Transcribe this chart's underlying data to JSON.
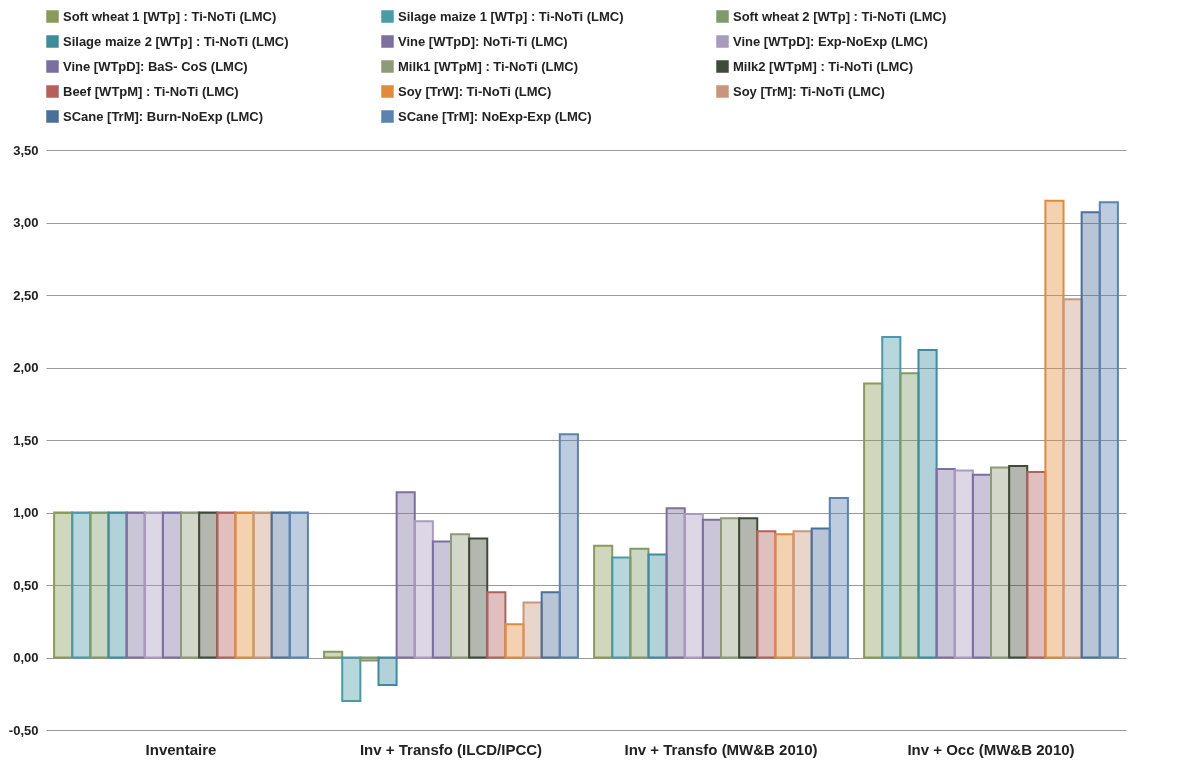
{
  "chart_data": {
    "type": "bar",
    "categories": [
      "Inventaire",
      "Inv + Transfo (ILCD/IPCC)",
      "Inv + Transfo (MW&B 2010)",
      "Inv + Occ (MW&B 2010)"
    ],
    "series": [
      {
        "name": "Soft wheat 1 [WTp] : Ti-NoTi (LMC)",
        "color": "#8a9a5b",
        "values": [
          1.0,
          0.04,
          0.77,
          1.89
        ]
      },
      {
        "name": "Silage maize 1 [WTp] : Ti-NoTi (LMC)",
        "color": "#4a9aa8",
        "values": [
          1.0,
          -0.3,
          0.69,
          2.21
        ]
      },
      {
        "name": "Soft wheat 2 [WTp] : Ti-NoTi (LMC)",
        "color": "#7f9a6a",
        "values": [
          1.0,
          -0.02,
          0.75,
          1.96
        ]
      },
      {
        "name": "Silage maize 2 [WTp] : Ti-NoTi (LMC)",
        "color": "#3f8c9e",
        "values": [
          1.0,
          -0.19,
          0.71,
          2.12
        ]
      },
      {
        "name": "Vine [WTpD]: NoTi-Ti (LMC)",
        "color": "#7d6f9e",
        "values": [
          1.0,
          1.14,
          1.03,
          1.3
        ]
      },
      {
        "name": "Vine [WTpD]: Exp-NoExp (LMC)",
        "color": "#a99bbd",
        "values": [
          1.0,
          0.94,
          0.99,
          1.29
        ]
      },
      {
        "name": "Vine [WTpD]: BaS- CoS (LMC)",
        "color": "#7a6fa0",
        "values": [
          1.0,
          0.8,
          0.95,
          1.26
        ]
      },
      {
        "name": "Milk1 [WTpM] : Ti-NoTi (LMC)",
        "color": "#8e9a78",
        "values": [
          1.0,
          0.85,
          0.96,
          1.31
        ]
      },
      {
        "name": "Milk2 [WTpM] : Ti-NoTi (LMC)",
        "color": "#404a3a",
        "values": [
          1.0,
          0.82,
          0.96,
          1.32
        ]
      },
      {
        "name": "Beef [WTpM] : Ti-NoTi (LMC)",
        "color": "#b5605e",
        "values": [
          1.0,
          0.45,
          0.87,
          1.28
        ]
      },
      {
        "name": "Soy [TrW]: Ti-NoTi (LMC)",
        "color": "#e08b3c",
        "values": [
          1.0,
          0.23,
          0.85,
          3.15
        ]
      },
      {
        "name": "Soy [TrM]: Ti-NoTi (LMC)",
        "color": "#c8967a",
        "values": [
          1.0,
          0.38,
          0.87,
          2.47
        ]
      },
      {
        "name": "SCane [TrM]: Burn-NoExp (LMC)",
        "color": "#4a6f9a",
        "values": [
          1.0,
          0.45,
          0.89,
          3.07
        ]
      },
      {
        "name": "SCane [TrM]: NoExp-Exp (LMC)",
        "color": "#5b82b0",
        "values": [
          1.0,
          1.54,
          1.1,
          3.14
        ]
      }
    ],
    "ylim": [
      -0.5,
      3.5
    ],
    "yticks": [
      {
        "value": -0.5,
        "label": "-0,50"
      },
      {
        "value": 0,
        "label": "0,00"
      },
      {
        "value": 0.5,
        "label": "0,50"
      },
      {
        "value": 1,
        "label": "1,00"
      },
      {
        "value": 1.5,
        "label": "1,50"
      },
      {
        "value": 2,
        "label": "2,00"
      },
      {
        "value": 2.5,
        "label": "2,50"
      },
      {
        "value": 3,
        "label": "3,00"
      },
      {
        "value": 3.5,
        "label": "3,50"
      }
    ],
    "grid": "y",
    "legend": "top"
  }
}
